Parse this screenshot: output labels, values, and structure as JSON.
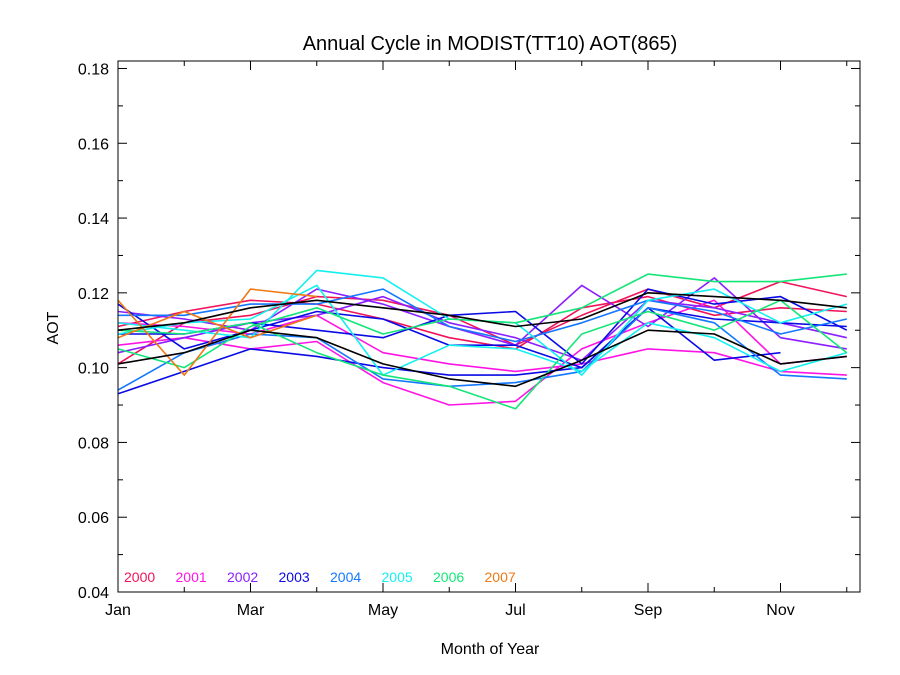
{
  "chart_data": {
    "type": "line",
    "title": "Annual Cycle in MODIST(TT10) AOT(865)",
    "xlabel": "Month of Year",
    "ylabel": "AOT",
    "xlim": [
      1,
      12.2
    ],
    "ylim": [
      0.04,
      0.182
    ],
    "x_ticks": [
      {
        "value": 1,
        "label": "Jan"
      },
      {
        "value": 3,
        "label": "Mar"
      },
      {
        "value": 5,
        "label": "May"
      },
      {
        "value": 7,
        "label": "Jul"
      },
      {
        "value": 9,
        "label": "Sep"
      },
      {
        "value": 11,
        "label": "Nov"
      }
    ],
    "y_ticks": [
      "0.04",
      "0.06",
      "0.08",
      "0.10",
      "0.12",
      "0.14",
      "0.16",
      "0.18"
    ],
    "legend": {
      "placement": "bottom-left",
      "entries": [
        {
          "name": "2000",
          "color": "#f0145a"
        },
        {
          "name": "2001",
          "color": "#ff14e6"
        },
        {
          "name": "2002",
          "color": "#8c1eff"
        },
        {
          "name": "2003",
          "color": "#0a0ae6"
        },
        {
          "name": "2004",
          "color": "#1478ff"
        },
        {
          "name": "2005",
          "color": "#14f0f0"
        },
        {
          "name": "2006",
          "color": "#14e678"
        },
        {
          "name": "2007",
          "color": "#f07814"
        }
      ]
    },
    "x": [
      1,
      2,
      3,
      4,
      5,
      6,
      7,
      8,
      9,
      10,
      11,
      12
    ],
    "series": [
      {
        "color": "#f0145a",
        "values": [
          0.101,
          0.112,
          0.114,
          0.119,
          0.118,
          0.114,
          0.106,
          0.114,
          0.121,
          0.116,
          0.123,
          0.119
        ]
      },
      {
        "color": "#f0145a",
        "values": [
          0.111,
          0.115,
          0.118,
          0.117,
          0.113,
          0.108,
          0.105,
          0.116,
          0.119,
          0.114,
          0.116,
          0.115
        ]
      },
      {
        "color": "#ff14e6",
        "values": [
          0.106,
          0.108,
          0.105,
          0.107,
          0.096,
          0.09,
          0.091,
          0.105,
          0.112,
          0.118,
          0.101,
          0.103
        ]
      },
      {
        "color": "#ff14e6",
        "values": [
          0.112,
          0.111,
          0.109,
          0.114,
          0.104,
          0.101,
          0.099,
          0.101,
          0.105,
          0.104,
          0.099,
          0.098
        ]
      },
      {
        "color": "#8c1eff",
        "values": [
          0.115,
          0.113,
          0.11,
          0.121,
          0.117,
          0.111,
          0.106,
          0.122,
          0.111,
          0.124,
          0.108,
          0.105
        ]
      },
      {
        "color": "#8c1eff",
        "values": [
          0.104,
          0.108,
          0.112,
          0.114,
          0.119,
          0.112,
          0.108,
          0.102,
          0.118,
          0.116,
          0.112,
          0.108
        ]
      },
      {
        "color": "#0a0ae6",
        "values": [
          0.093,
          0.099,
          0.105,
          0.103,
          0.1,
          0.098,
          0.098,
          0.1,
          0.116,
          0.102,
          0.104,
          null
        ]
      },
      {
        "color": "#0a0ae6",
        "values": [
          0.109,
          0.109,
          0.112,
          0.11,
          0.108,
          0.114,
          0.115,
          0.101,
          0.121,
          0.117,
          0.119,
          0.11
        ]
      },
      {
        "color": "#0a0ae6",
        "values": [
          0.117,
          0.105,
          0.11,
          0.115,
          0.113,
          0.106,
          0.106,
          0.1,
          0.116,
          0.113,
          0.112,
          0.111
        ]
      },
      {
        "color": "#1478ff",
        "values": [
          0.114,
          0.114,
          0.117,
          0.117,
          0.121,
          0.111,
          0.107,
          0.112,
          0.118,
          0.115,
          0.109,
          0.113
        ]
      },
      {
        "color": "#1478ff",
        "values": [
          0.094,
          0.104,
          0.109,
          0.108,
          0.097,
          0.095,
          0.096,
          0.099,
          0.116,
          0.112,
          0.098,
          0.097
        ]
      },
      {
        "color": "#14f0f0",
        "values": [
          0.112,
          0.11,
          0.108,
          0.126,
          0.124,
          0.113,
          0.112,
          0.098,
          0.118,
          0.121,
          0.112,
          0.117
        ]
      },
      {
        "color": "#14f0f0",
        "values": [
          0.109,
          0.112,
          0.113,
          0.122,
          0.098,
          0.106,
          0.105,
          0.099,
          0.112,
          0.108,
          0.099,
          0.104
        ]
      },
      {
        "color": "#14e678",
        "values": [
          0.105,
          0.1,
          0.111,
          0.116,
          0.109,
          0.113,
          0.112,
          0.116,
          0.125,
          0.123,
          0.123,
          0.125
        ]
      },
      {
        "color": "#14e678",
        "values": [
          0.11,
          0.109,
          0.112,
          0.104,
          0.098,
          0.095,
          0.089,
          0.109,
          0.115,
          0.11,
          0.118,
          0.104
        ]
      },
      {
        "color": "#f07814",
        "values": [
          0.118,
          0.098,
          0.121,
          0.119,
          null,
          null,
          null,
          null,
          null,
          null,
          null,
          null
        ]
      },
      {
        "color": "#f07814",
        "values": [
          0.108,
          0.115,
          0.108,
          0.114,
          null,
          null,
          null,
          null,
          null,
          null,
          null,
          null
        ]
      },
      {
        "color": "#000000",
        "values": [
          0.11,
          0.112,
          0.116,
          0.118,
          0.116,
          0.114,
          0.111,
          0.113,
          0.12,
          0.119,
          0.118,
          0.116
        ]
      },
      {
        "color": "#000000",
        "values": [
          0.101,
          0.104,
          0.11,
          0.108,
          0.101,
          0.097,
          0.095,
          0.102,
          0.11,
          0.109,
          0.101,
          0.103
        ]
      }
    ]
  }
}
